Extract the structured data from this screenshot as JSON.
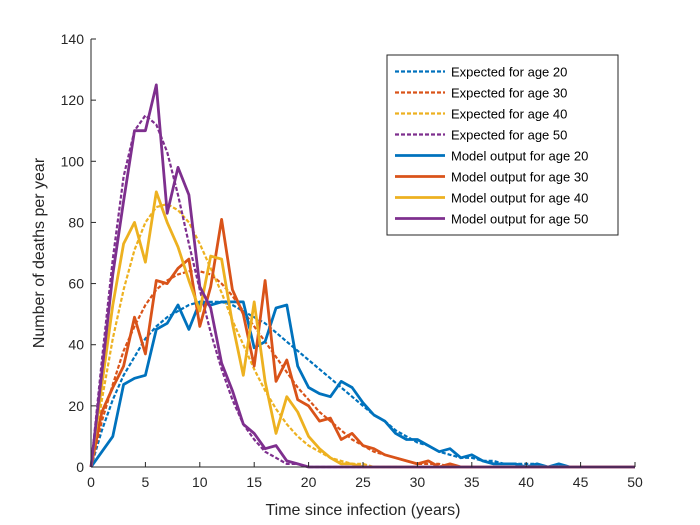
{
  "chart_data": {
    "type": "line",
    "xlabel": "Time since infection (years)",
    "ylabel": "Number of deaths per year",
    "xlim": [
      0,
      50
    ],
    "ylim": [
      0,
      140
    ],
    "xticks": [
      0,
      5,
      10,
      15,
      20,
      25,
      30,
      35,
      40,
      45,
      50
    ],
    "yticks": [
      0,
      20,
      40,
      60,
      80,
      100,
      120,
      140
    ],
    "grid": false,
    "legend_position": "top-right",
    "series": [
      {
        "name": "Expected for age 20",
        "style": "dashed",
        "color": "#0072BD",
        "x": [
          0,
          1,
          2,
          3,
          4,
          5,
          6,
          7,
          8,
          9,
          10,
          11,
          12,
          13,
          14,
          15,
          16,
          17,
          18,
          19,
          20,
          21,
          22,
          23,
          24,
          25,
          26,
          27,
          28,
          29,
          30,
          31,
          32,
          33,
          34,
          35,
          36,
          37,
          38,
          39,
          40,
          41,
          42,
          43,
          44,
          45,
          46,
          47,
          48,
          49,
          50
        ],
        "y": [
          0,
          12,
          22,
          30,
          36,
          42,
          46,
          49,
          51,
          53,
          54,
          54,
          54,
          53,
          51,
          49,
          47,
          44,
          41,
          38,
          35,
          32,
          29,
          26,
          23,
          20,
          17,
          15,
          12,
          10,
          8,
          7,
          5,
          4,
          3,
          3,
          2,
          2,
          1,
          1,
          1,
          1,
          0,
          0,
          0,
          0,
          0,
          0,
          0,
          0,
          0
        ]
      },
      {
        "name": "Expected for age 30",
        "style": "dashed",
        "color": "#D95319",
        "x": [
          0,
          1,
          2,
          3,
          4,
          5,
          6,
          7,
          8,
          9,
          10,
          11,
          12,
          13,
          14,
          15,
          16,
          17,
          18,
          19,
          20,
          21,
          22,
          23,
          24,
          25,
          26,
          27,
          28,
          29,
          30,
          31,
          32,
          33,
          34,
          35,
          36,
          37,
          38,
          39,
          40,
          41,
          42,
          43,
          44,
          45,
          46,
          47,
          48,
          49,
          50
        ],
        "y": [
          0,
          15,
          27,
          38,
          46,
          53,
          58,
          61,
          63,
          64,
          64,
          63,
          60,
          56,
          51,
          46,
          41,
          36,
          31,
          26,
          22,
          18,
          15,
          12,
          9,
          7,
          5,
          4,
          3,
          2,
          1,
          1,
          1,
          0,
          0,
          0,
          0,
          0,
          0,
          0,
          0,
          0,
          0,
          0,
          0,
          0,
          0,
          0,
          0,
          0,
          0
        ]
      },
      {
        "name": "Expected for age 40",
        "style": "dashed",
        "color": "#EDB120",
        "x": [
          0,
          1,
          2,
          3,
          4,
          5,
          6,
          7,
          8,
          9,
          10,
          11,
          12,
          13,
          14,
          15,
          16,
          17,
          18,
          19,
          20,
          21,
          22,
          23,
          24,
          25,
          26,
          27,
          28,
          29,
          30,
          31,
          32,
          33,
          34,
          35,
          36,
          37,
          38,
          39,
          40,
          41,
          42,
          43,
          44,
          45,
          46,
          47,
          48,
          49,
          50
        ],
        "y": [
          0,
          22,
          42,
          58,
          71,
          80,
          85,
          86,
          84,
          80,
          73,
          65,
          57,
          48,
          40,
          32,
          25,
          19,
          14,
          10,
          7,
          5,
          3,
          2,
          1,
          1,
          0,
          0,
          0,
          0,
          0,
          0,
          0,
          0,
          0,
          0,
          0,
          0,
          0,
          0,
          0,
          0,
          0,
          0,
          0,
          0,
          0,
          0,
          0,
          0,
          0
        ]
      },
      {
        "name": "Expected for age 50",
        "style": "dashed",
        "color": "#7E2F8E",
        "x": [
          0,
          1,
          2,
          3,
          4,
          5,
          6,
          7,
          8,
          9,
          10,
          11,
          12,
          13,
          14,
          15,
          16,
          17,
          18,
          19,
          20,
          21,
          22,
          23,
          24,
          25,
          26,
          27,
          28,
          29,
          30,
          31,
          32,
          33,
          34,
          35,
          36,
          37,
          38,
          39,
          40,
          41,
          42,
          43,
          44,
          45,
          46,
          47,
          48,
          49,
          50
        ],
        "y": [
          0,
          35,
          68,
          95,
          110,
          115,
          112,
          103,
          89,
          73,
          58,
          44,
          32,
          22,
          14,
          9,
          5,
          3,
          1,
          1,
          0,
          0,
          0,
          0,
          0,
          0,
          0,
          0,
          0,
          0,
          0,
          0,
          0,
          0,
          0,
          0,
          0,
          0,
          0,
          0,
          0,
          0,
          0,
          0,
          0,
          0,
          0,
          0,
          0,
          0,
          0
        ]
      },
      {
        "name": "Model output for age 20",
        "style": "solid",
        "color": "#0072BD",
        "x": [
          0,
          1,
          2,
          3,
          4,
          5,
          6,
          7,
          8,
          9,
          10,
          11,
          12,
          13,
          14,
          15,
          16,
          17,
          18,
          19,
          20,
          21,
          22,
          23,
          24,
          25,
          26,
          27,
          28,
          29,
          30,
          31,
          32,
          33,
          34,
          35,
          36,
          37,
          38,
          39,
          40,
          41,
          42,
          43,
          44,
          45,
          46,
          47,
          48,
          49,
          50
        ],
        "y": [
          0,
          5,
          10,
          27,
          29,
          30,
          45,
          47,
          53,
          45,
          54,
          53,
          54,
          54,
          54,
          39,
          41,
          52,
          53,
          33,
          26,
          24,
          23,
          28,
          26,
          21,
          17,
          15,
          11,
          9,
          9,
          7,
          5,
          6,
          3,
          4,
          2,
          1,
          1,
          1,
          0,
          1,
          0,
          1,
          0,
          0,
          0,
          0,
          0,
          0,
          0
        ]
      },
      {
        "name": "Model output for age 30",
        "style": "solid",
        "color": "#D95319",
        "x": [
          0,
          1,
          2,
          3,
          4,
          5,
          6,
          7,
          8,
          9,
          10,
          11,
          12,
          13,
          14,
          15,
          16,
          17,
          18,
          19,
          20,
          21,
          22,
          23,
          24,
          25,
          26,
          27,
          28,
          29,
          30,
          31,
          32,
          33,
          34,
          35,
          36,
          37,
          38,
          39,
          40,
          41,
          42,
          43,
          44,
          45,
          46,
          47,
          48,
          49,
          50
        ],
        "y": [
          0,
          18,
          26,
          33,
          49,
          37,
          61,
          60,
          65,
          68,
          46,
          59,
          81,
          58,
          50,
          33,
          61,
          28,
          35,
          22,
          20,
          15,
          16,
          9,
          11,
          7,
          6,
          4,
          3,
          2,
          1,
          2,
          0,
          1,
          0,
          0,
          0,
          0,
          0,
          0,
          0,
          0,
          0,
          0,
          0,
          0,
          0,
          0,
          0,
          0,
          0
        ]
      },
      {
        "name": "Model output for age 40",
        "style": "solid",
        "color": "#EDB120",
        "x": [
          0,
          1,
          2,
          3,
          4,
          5,
          6,
          7,
          8,
          9,
          10,
          11,
          12,
          13,
          14,
          15,
          16,
          17,
          18,
          19,
          20,
          21,
          22,
          23,
          24,
          25,
          26,
          27,
          28,
          29,
          30,
          31,
          32,
          33,
          34,
          35,
          36,
          37,
          38,
          39,
          40,
          41,
          42,
          43,
          44,
          45,
          46,
          47,
          48,
          49,
          50
        ],
        "y": [
          0,
          27,
          53,
          73,
          80,
          67,
          90,
          80,
          72,
          61,
          51,
          69,
          68,
          47,
          30,
          54,
          28,
          11,
          23,
          18,
          10,
          6,
          3,
          1,
          1,
          0,
          0,
          0,
          0,
          0,
          0,
          0,
          0,
          0,
          0,
          0,
          0,
          0,
          0,
          0,
          0,
          0,
          0,
          0,
          0,
          0,
          0,
          0,
          0,
          0,
          0
        ]
      },
      {
        "name": "Model output for age 50",
        "style": "solid",
        "color": "#7E2F8E",
        "x": [
          0,
          1,
          2,
          3,
          4,
          5,
          6,
          7,
          8,
          9,
          10,
          11,
          12,
          13,
          14,
          15,
          16,
          17,
          18,
          19,
          20,
          21,
          22,
          23,
          24,
          25,
          26,
          27,
          28,
          29,
          30,
          31,
          32,
          33,
          34,
          35,
          36,
          37,
          38,
          39,
          40,
          41,
          42,
          43,
          44,
          45,
          46,
          47,
          48,
          49,
          50
        ],
        "y": [
          0,
          31,
          63,
          87,
          110,
          110,
          125,
          83,
          98,
          89,
          59,
          52,
          34,
          25,
          14,
          11,
          6,
          7,
          2,
          1,
          0,
          0,
          0,
          0,
          0,
          0,
          0,
          0,
          0,
          0,
          0,
          0,
          0,
          0,
          0,
          0,
          0,
          0,
          0,
          0,
          0,
          0,
          0,
          0,
          0,
          0,
          0,
          0,
          0,
          0,
          0
        ]
      }
    ]
  }
}
